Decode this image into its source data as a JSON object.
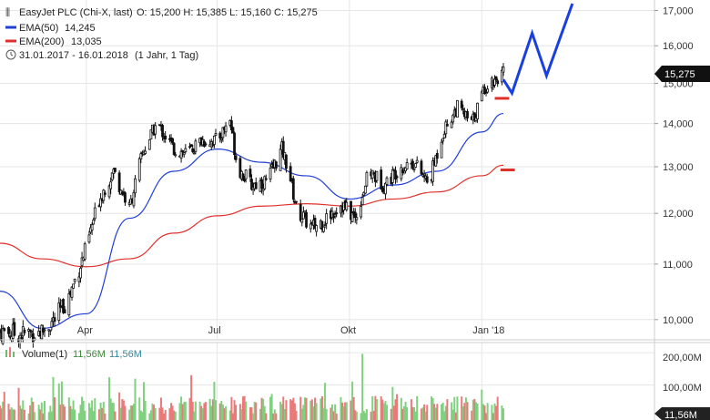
{
  "header": {
    "title": "EasyJet PLC (Chi-X, last)",
    "ohlc": "O: 15,200  H: 15,385  L: 15,160  C: 15,275",
    "ema50_label": "EMA(50)",
    "ema50_value": "14,245",
    "ema200_label": "EMA(200)",
    "ema200_value": "13,035",
    "period": "31.01.2017 - 16.01.2018",
    "period_note": "(1 Jahr, 1 Tag)"
  },
  "colors": {
    "ema50": "#1f3fd6",
    "ema200": "#e0302a",
    "candle": "#111111",
    "forecast": "#1a3fe0",
    "support": "#e0302a",
    "vol_up": "#7fd07f",
    "vol_down": "#e87a7a",
    "grid": "#e6e6e6"
  },
  "volume_panel": {
    "label": "Volume(1)",
    "value_a": "11,56M",
    "value_b": "11,56M",
    "ticks": [
      "200,00M",
      "100,00M"
    ],
    "last_tag": "11,56M"
  },
  "chart_data": {
    "type": "candlestick",
    "title": "EasyJet PLC (Chi-X, last)",
    "x_tick_labels": [
      "Apr",
      "Jul",
      "Okt",
      "Jan '18"
    ],
    "y_tick_labels": [
      "10,000",
      "11,000",
      "12,000",
      "13,000",
      "14,000",
      "15,000",
      "16,000",
      "17,000"
    ],
    "ylim": [
      9.75,
      17.2
    ],
    "last_price_tag": "15,275",
    "close_points": [
      {
        "x": "2017-01-31",
        "y": 9.8
      },
      {
        "x": "2017-02-15",
        "y": 9.75
      },
      {
        "x": "2017-03-01",
        "y": 9.8
      },
      {
        "x": "2017-03-10",
        "y": 10.0
      },
      {
        "x": "2017-03-20",
        "y": 10.4
      },
      {
        "x": "2017-04-01",
        "y": 11.3
      },
      {
        "x": "2017-04-10",
        "y": 12.3
      },
      {
        "x": "2017-04-20",
        "y": 12.9
      },
      {
        "x": "2017-05-01",
        "y": 12.1
      },
      {
        "x": "2017-05-10",
        "y": 13.3
      },
      {
        "x": "2017-05-20",
        "y": 14.0
      },
      {
        "x": "2017-06-01",
        "y": 13.4
      },
      {
        "x": "2017-06-10",
        "y": 13.3
      },
      {
        "x": "2017-06-20",
        "y": 13.6
      },
      {
        "x": "2017-07-01",
        "y": 13.6
      },
      {
        "x": "2017-07-10",
        "y": 14.1
      },
      {
        "x": "2017-07-15",
        "y": 13.0
      },
      {
        "x": "2017-07-25",
        "y": 12.6
      },
      {
        "x": "2017-08-05",
        "y": 12.7
      },
      {
        "x": "2017-08-15",
        "y": 13.4
      },
      {
        "x": "2017-08-20",
        "y": 12.9
      },
      {
        "x": "2017-08-25",
        "y": 12.1
      },
      {
        "x": "2017-09-05",
        "y": 11.7
      },
      {
        "x": "2017-09-15",
        "y": 11.9
      },
      {
        "x": "2017-09-25",
        "y": 12.2
      },
      {
        "x": "2017-10-05",
        "y": 11.9
      },
      {
        "x": "2017-10-15",
        "y": 12.9
      },
      {
        "x": "2017-10-25",
        "y": 12.6
      },
      {
        "x": "2017-11-05",
        "y": 13.0
      },
      {
        "x": "2017-11-15",
        "y": 13.1
      },
      {
        "x": "2017-11-25",
        "y": 12.6
      },
      {
        "x": "2017-12-05",
        "y": 13.8
      },
      {
        "x": "2017-12-15",
        "y": 14.4
      },
      {
        "x": "2017-12-25",
        "y": 14.0
      },
      {
        "x": "2018-01-03",
        "y": 14.9
      },
      {
        "x": "2018-01-10",
        "y": 15.1
      },
      {
        "x": "2018-01-16",
        "y": 15.275
      }
    ],
    "series": [
      {
        "name": "EMA(50)",
        "color": "#1f3fd6",
        "points": [
          {
            "x": "2017-01-31",
            "y": 10.5
          },
          {
            "x": "2017-03-01",
            "y": 9.85
          },
          {
            "x": "2017-04-01",
            "y": 10.1
          },
          {
            "x": "2017-05-01",
            "y": 11.9
          },
          {
            "x": "2017-06-01",
            "y": 12.9
          },
          {
            "x": "2017-07-01",
            "y": 13.4
          },
          {
            "x": "2017-08-01",
            "y": 13.1
          },
          {
            "x": "2017-09-01",
            "y": 12.8
          },
          {
            "x": "2017-10-01",
            "y": 12.3
          },
          {
            "x": "2017-11-01",
            "y": 12.6
          },
          {
            "x": "2017-12-01",
            "y": 12.9
          },
          {
            "x": "2018-01-01",
            "y": 13.8
          },
          {
            "x": "2018-01-16",
            "y": 14.245
          }
        ]
      },
      {
        "name": "EMA(200)",
        "color": "#e0302a",
        "points": [
          {
            "x": "2017-01-31",
            "y": 11.4
          },
          {
            "x": "2017-03-01",
            "y": 11.1
          },
          {
            "x": "2017-04-01",
            "y": 10.95
          },
          {
            "x": "2017-05-01",
            "y": 11.1
          },
          {
            "x": "2017-06-01",
            "y": 11.6
          },
          {
            "x": "2017-07-01",
            "y": 11.95
          },
          {
            "x": "2017-08-01",
            "y": 12.15
          },
          {
            "x": "2017-09-01",
            "y": 12.2
          },
          {
            "x": "2017-10-01",
            "y": 12.15
          },
          {
            "x": "2017-11-01",
            "y": 12.3
          },
          {
            "x": "2017-12-01",
            "y": 12.45
          },
          {
            "x": "2018-01-01",
            "y": 12.8
          },
          {
            "x": "2018-01-16",
            "y": 13.035
          }
        ]
      }
    ],
    "annotations": {
      "forecast_path": [
        {
          "x": "2018-01-16",
          "y": 15.1
        },
        {
          "x": "2018-01-22",
          "y": 14.75
        },
        {
          "x": "2018-02-05",
          "y": 16.35
        },
        {
          "x": "2018-02-15",
          "y": 15.2
        },
        {
          "x": "2018-03-05",
          "y": 17.2
        }
      ],
      "support_lines": [
        {
          "from": "2018-01-10",
          "to": "2018-01-20",
          "y": 14.62
        },
        {
          "from": "2018-01-14",
          "to": "2018-01-24",
          "y": 12.93
        }
      ]
    },
    "volume": {
      "ylim": [
        0,
        240
      ],
      "unit": "M",
      "max_bar": 205,
      "last": 11.56
    }
  }
}
